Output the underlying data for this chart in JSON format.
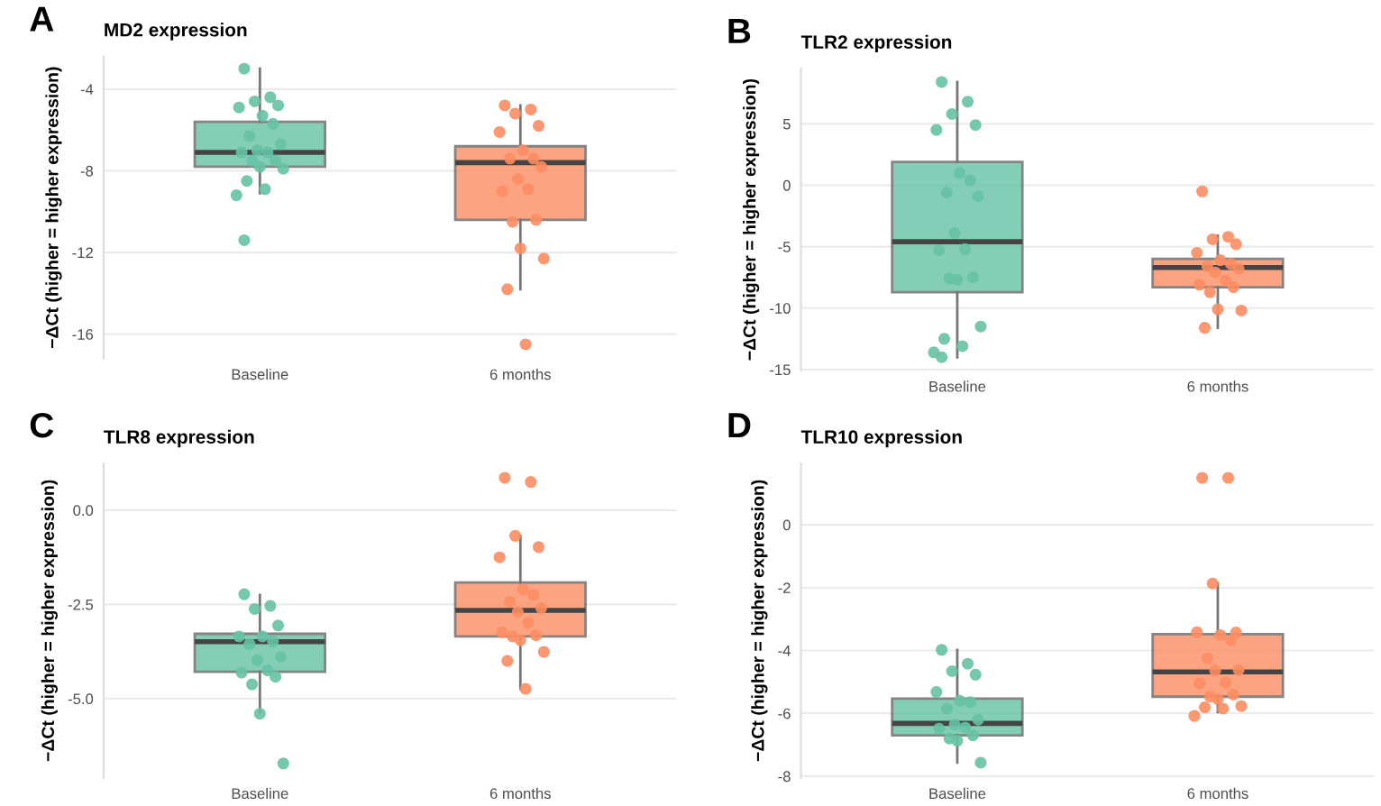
{
  "chart_data": [
    {
      "type": "box",
      "title": "MD2 expression",
      "ylabel": "−ΔCt (higher = higher expression)",
      "annotations": [
        "A"
      ],
      "categories": [
        "Baseline",
        "6 months"
      ],
      "ylim": [
        -17.2,
        -2.4
      ],
      "yticks": [
        -4,
        -8,
        -12,
        -16
      ],
      "grid": "y",
      "series": [
        {
          "type": "box",
          "colors": [
            "#66c2a5",
            "#fc8d62"
          ],
          "boxes": [
            {
              "low": -9.1,
              "q1": -7.8,
              "median": -7.1,
              "q3": -5.6,
              "high": -3.0
            },
            {
              "low": -13.8,
              "q1": -10.4,
              "median": -7.6,
              "q3": -6.8,
              "high": -4.8
            }
          ]
        },
        {
          "type": "scatter",
          "color": "#66c2a5",
          "x": [
            "Baseline",
            "Baseline",
            "Baseline",
            "Baseline",
            "Baseline",
            "Baseline",
            "Baseline",
            "Baseline",
            "Baseline",
            "Baseline",
            "Baseline",
            "Baseline",
            "Baseline",
            "Baseline",
            "Baseline",
            "Baseline",
            "Baseline",
            "Baseline",
            "Baseline",
            "Baseline"
          ],
          "values": [
            -3.0,
            -4.4,
            -4.6,
            -4.8,
            -4.9,
            -5.3,
            -5.7,
            -6.3,
            -6.7,
            -7.0,
            -7.1,
            -7.1,
            -7.5,
            -7.5,
            -7.8,
            -7.9,
            -8.5,
            -8.9,
            -9.2,
            -11.4
          ]
        },
        {
          "type": "scatter",
          "color": "#fc8d62",
          "x": [
            "6 months",
            "6 months",
            "6 months",
            "6 months",
            "6 months",
            "6 months",
            "6 months",
            "6 months",
            "6 months",
            "6 months",
            "6 months",
            "6 months",
            "6 months",
            "6 months",
            "6 months",
            "6 months",
            "6 months",
            "6 months"
          ],
          "values": [
            -4.8,
            -5.0,
            -5.2,
            -5.8,
            -6.1,
            -7.0,
            -7.4,
            -7.4,
            -7.8,
            -8.4,
            -8.9,
            -9.0,
            -10.4,
            -10.5,
            -11.8,
            -12.3,
            -13.8,
            -16.5
          ]
        }
      ]
    },
    {
      "type": "box",
      "title": "TLR2 expression",
      "ylabel": "−ΔCt (higher = higher expression)",
      "annotations": [
        "B"
      ],
      "categories": [
        "Baseline",
        "6 months"
      ],
      "ylim": [
        -15.1,
        9.5
      ],
      "yticks": [
        5,
        0,
        -5,
        -10,
        -15
      ],
      "grid": "y",
      "series": [
        {
          "type": "box",
          "colors": [
            "#66c2a5",
            "#fc8d62"
          ],
          "boxes": [
            {
              "low": -14.0,
              "q1": -8.7,
              "median": -4.6,
              "q3": 1.9,
              "high": 8.4
            },
            {
              "low": -11.6,
              "q1": -8.3,
              "median": -6.7,
              "q3": -6.0,
              "high": -4.1
            }
          ]
        },
        {
          "type": "scatter",
          "color": "#66c2a5",
          "x": [
            "Baseline",
            "Baseline",
            "Baseline",
            "Baseline",
            "Baseline",
            "Baseline",
            "Baseline",
            "Baseline",
            "Baseline",
            "Baseline",
            "Baseline",
            "Baseline",
            "Baseline",
            "Baseline",
            "Baseline",
            "Baseline",
            "Baseline",
            "Baseline",
            "Baseline",
            "Baseline"
          ],
          "values": [
            8.4,
            6.8,
            5.8,
            4.9,
            4.5,
            1.0,
            0.4,
            -0.6,
            -0.9,
            -3.9,
            -5.2,
            -5.3,
            -7.5,
            -7.6,
            -7.7,
            -11.5,
            -12.5,
            -13.1,
            -13.6,
            -14.0
          ]
        },
        {
          "type": "scatter",
          "color": "#fc8d62",
          "x": [
            "6 months",
            "6 months",
            "6 months",
            "6 months",
            "6 months",
            "6 months",
            "6 months",
            "6 months",
            "6 months",
            "6 months",
            "6 months",
            "6 months",
            "6 months",
            "6 months",
            "6 months",
            "6 months",
            "6 months"
          ],
          "values": [
            -0.5,
            -4.2,
            -4.4,
            -4.8,
            -5.5,
            -6.1,
            -6.4,
            -6.6,
            -6.8,
            -7.1,
            -7.75,
            -8.1,
            -8.3,
            -8.7,
            -10.1,
            -10.2,
            -11.6
          ]
        }
      ]
    },
    {
      "type": "box",
      "title": "TLR8 expression",
      "ylabel": "−ΔCt (higher = higher expression)",
      "annotations": [
        "C"
      ],
      "categories": [
        "Baseline",
        "6 months"
      ],
      "ylim": [
        -7.1,
        1.24
      ],
      "yticks": [
        {
          "value": 0,
          "label": "0.0"
        },
        -2.5,
        {
          "value": -5,
          "label": "-5.0"
        }
      ],
      "grid": "y",
      "series": [
        {
          "type": "box",
          "colors": [
            "#66c2a5",
            "#fc8d62"
          ],
          "boxes": [
            {
              "low": -5.38,
              "q1": -4.29,
              "median": -3.49,
              "q3": -3.28,
              "high": -2.25
            },
            {
              "low": -4.74,
              "q1": -3.35,
              "median": -2.66,
              "q3": -1.92,
              "high": -0.68
            }
          ]
        },
        {
          "type": "scatter",
          "color": "#66c2a5",
          "x": [
            "Baseline",
            "Baseline",
            "Baseline",
            "Baseline",
            "Baseline",
            "Baseline",
            "Baseline",
            "Baseline",
            "Baseline",
            "Baseline",
            "Baseline",
            "Baseline",
            "Baseline",
            "Baseline",
            "Baseline",
            "Baseline"
          ],
          "values": [
            -2.23,
            -2.54,
            -2.62,
            -3.06,
            -3.35,
            -3.35,
            -3.48,
            -3.55,
            -3.89,
            -3.98,
            -4.25,
            -4.31,
            -4.42,
            -4.62,
            -5.4,
            -6.72
          ]
        },
        {
          "type": "scatter",
          "color": "#fc8d62",
          "x": [
            "6 months",
            "6 months",
            "6 months",
            "6 months",
            "6 months",
            "6 months",
            "6 months",
            "6 months",
            "6 months",
            "6 months",
            "6 months",
            "6 months",
            "6 months",
            "6 months",
            "6 months",
            "6 months",
            "6 months",
            "6 months"
          ],
          "values": [
            0.86,
            0.75,
            -0.68,
            -0.98,
            -1.25,
            -2.1,
            -2.25,
            -2.43,
            -2.6,
            -2.7,
            -2.99,
            -3.24,
            -3.32,
            -3.35,
            -3.45,
            -3.76,
            -4.0,
            -4.74
          ]
        }
      ]
    },
    {
      "type": "box",
      "title": "TLR10 expression",
      "ylabel": "−ΔCt (higher = higher expression)",
      "annotations": [
        "D"
      ],
      "categories": [
        "Baseline",
        "6 months"
      ],
      "ylim": [
        -8.05,
        1.95
      ],
      "yticks": [
        0,
        -2,
        -4,
        -6,
        -8
      ],
      "grid": "y",
      "series": [
        {
          "type": "box",
          "colors": [
            "#66c2a5",
            "#fc8d62"
          ],
          "boxes": [
            {
              "low": -7.57,
              "q1": -6.7,
              "median": -6.32,
              "q3": -5.53,
              "high": -3.98
            },
            {
              "low": -5.96,
              "q1": -5.47,
              "median": -4.68,
              "q3": -3.48,
              "high": -1.87
            }
          ]
        },
        {
          "type": "scatter",
          "color": "#66c2a5",
          "x": [
            "Baseline",
            "Baseline",
            "Baseline",
            "Baseline",
            "Baseline",
            "Baseline",
            "Baseline",
            "Baseline",
            "Baseline",
            "Baseline",
            "Baseline",
            "Baseline",
            "Baseline",
            "Baseline",
            "Baseline",
            "Baseline"
          ],
          "values": [
            -3.98,
            -4.42,
            -4.66,
            -4.77,
            -5.32,
            -5.6,
            -5.64,
            -5.85,
            -6.2,
            -6.36,
            -6.45,
            -6.49,
            -6.7,
            -6.8,
            -6.87,
            -7.57
          ]
        },
        {
          "type": "scatter",
          "color": "#fc8d62",
          "x": [
            "6 months",
            "6 months",
            "6 months",
            "6 months",
            "6 months",
            "6 months",
            "6 months",
            "6 months",
            "6 months",
            "6 months",
            "6 months",
            "6 months",
            "6 months",
            "6 months",
            "6 months",
            "6 months",
            "6 months",
            "6 months",
            "6 months"
          ],
          "values": [
            1.49,
            1.49,
            -1.87,
            -3.43,
            -3.42,
            -3.51,
            -3.68,
            -4.25,
            -4.62,
            -4.64,
            -5.02,
            -5.04,
            -5.4,
            -5.47,
            -5.55,
            -5.77,
            -5.81,
            -5.85,
            -6.08
          ]
        }
      ]
    }
  ]
}
